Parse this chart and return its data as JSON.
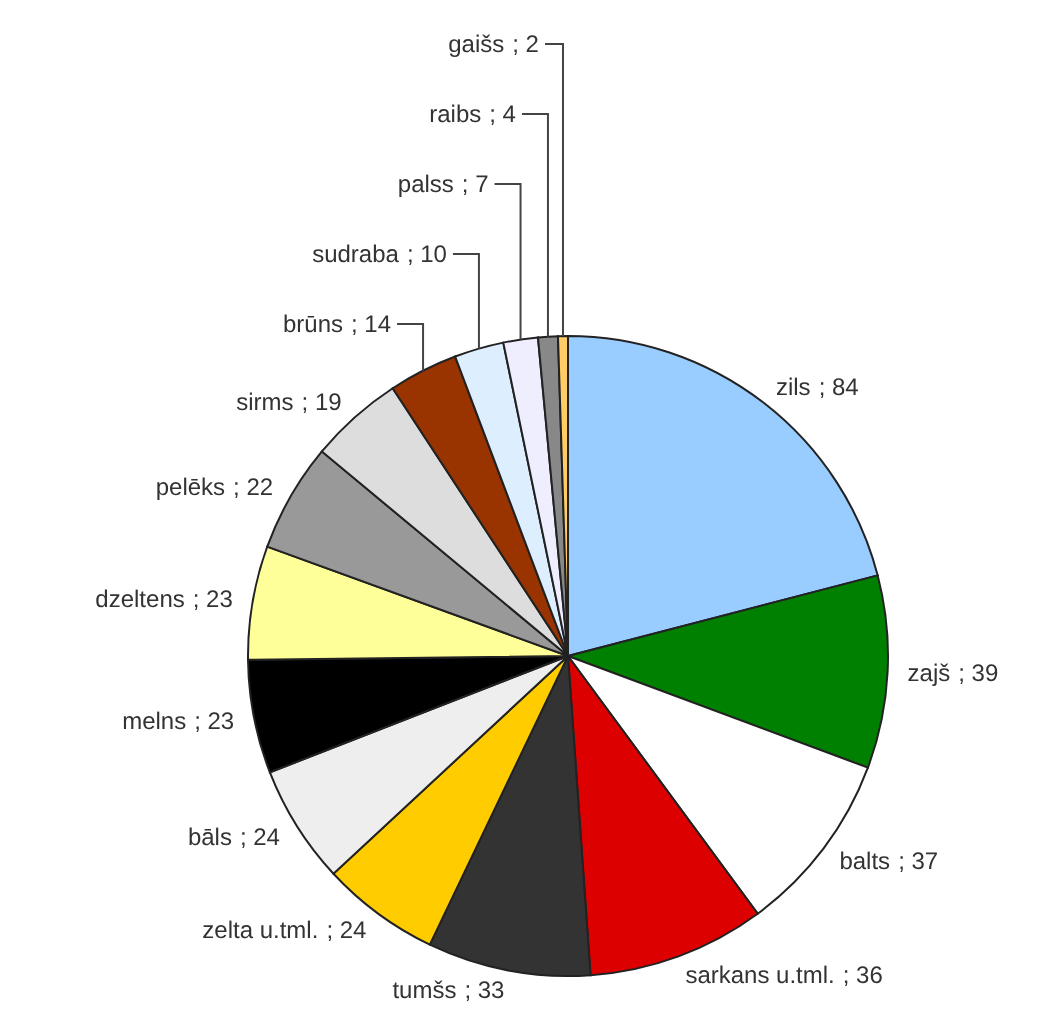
{
  "chart_data": {
    "type": "pie",
    "categories": [
      "zils",
      "zajš",
      "balts",
      "sarkans u.tml.",
      "tumšs",
      "zelta u.tml.",
      "bāls",
      "melns",
      "dzeltens",
      "pelēks",
      "sirms",
      "brūns",
      "sudraba",
      "palss",
      "raibs",
      "gaišs"
    ],
    "values": [
      84,
      39,
      37,
      36,
      33,
      24,
      24,
      23,
      23,
      22,
      19,
      14,
      10,
      7,
      4,
      2
    ],
    "colors": [
      "#99ccff",
      "#008000",
      "#ffffff",
      "#dd0000",
      "#333333",
      "#ffcc00",
      "#eeeeee",
      "#000000",
      "#ffff99",
      "#999999",
      "#dddddd",
      "#993300",
      "#ddeeff",
      "#eeeeff",
      "#888888",
      "#ffcc66"
    ],
    "value_labels": [
      "; 84",
      "; 39",
      "; 37",
      "; 36",
      "; 33",
      "; 24",
      "; 24",
      "; 23",
      "; 23",
      "; 22",
      "; 19",
      "; 14",
      "; 10",
      "; 7",
      "; 4",
      "; 2"
    ]
  }
}
